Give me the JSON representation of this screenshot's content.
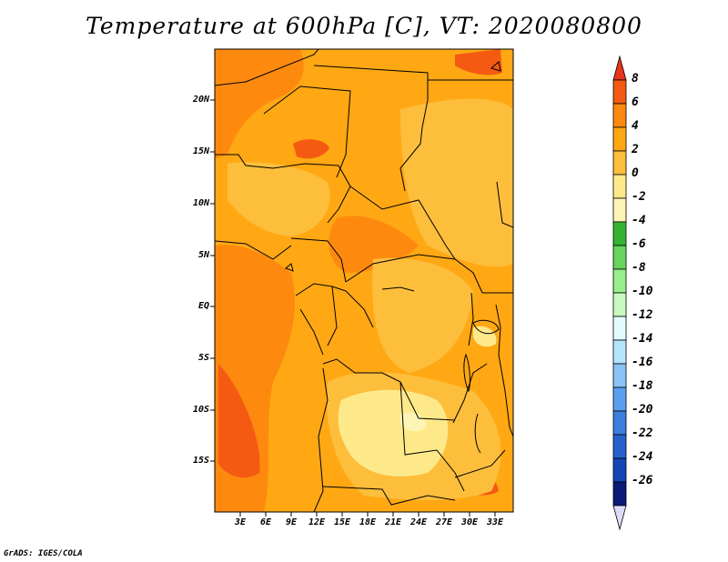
{
  "title": "Temperature at 600hPa [C], VT: 2020080800",
  "credit": "GrADS: IGES/COLA",
  "map": {
    "lat_labels": [
      "20N",
      "15N",
      "10N",
      "5N",
      "EQ",
      "5S",
      "10S",
      "15S"
    ],
    "lon_labels": [
      "3E",
      "6E",
      "9E",
      "12E",
      "15E",
      "18E",
      "21E",
      "24E",
      "27E",
      "30E",
      "33E"
    ],
    "background_color": "#ffa813"
  },
  "colorbar": {
    "labels": [
      "8",
      "6",
      "4",
      "2",
      "0",
      "-2",
      "-4",
      "-6",
      "-8",
      "-10",
      "-12",
      "-14",
      "-16",
      "-18",
      "-20",
      "-22",
      "-24",
      "-26"
    ],
    "colors": [
      "#e8351c",
      "#f45a12",
      "#fd8a0e",
      "#ffa813",
      "#fdbe3c",
      "#fee98a",
      "#fef4b6",
      "#34b432",
      "#67d45c",
      "#97ee8c",
      "#c8f8c0",
      "#e2fcfe",
      "#b5e5fc",
      "#8cc3f6",
      "#5aa0f0",
      "#3a7fdd",
      "#2562cf",
      "#1345b5",
      "#0b1a78",
      "#dcdcf6"
    ]
  }
}
